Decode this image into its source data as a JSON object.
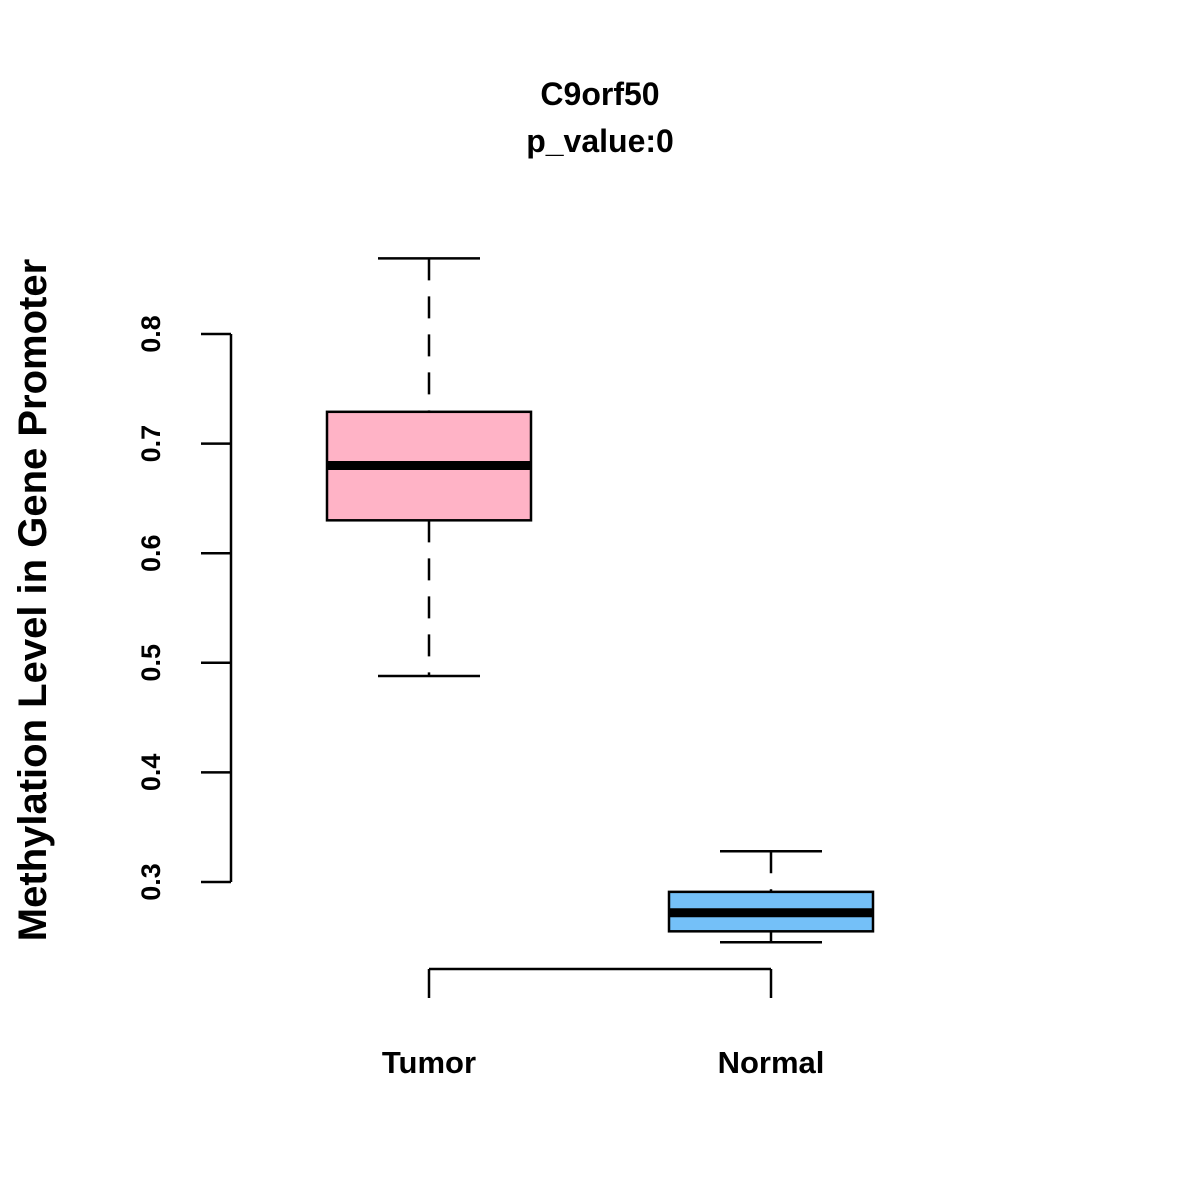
{
  "chart_data": {
    "type": "box",
    "title": "C9orf50",
    "subtitle": "p_value:0",
    "xlabel": "",
    "ylabel": "Methylation Level in Gene Promoter",
    "categories": [
      "Tumor",
      "Normal"
    ],
    "yticks": [
      "0.3",
      "0.4",
      "0.5",
      "0.6",
      "0.7",
      "0.8"
    ],
    "ytick_values": [
      0.3,
      0.4,
      0.5,
      0.6,
      0.7,
      0.8
    ],
    "series": [
      {
        "name": "Tumor",
        "color": "#FFB3C6",
        "whisker_low": 0.488,
        "q1": 0.63,
        "median": 0.68,
        "q3": 0.729,
        "whisker_high": 0.869
      },
      {
        "name": "Normal",
        "color": "#74C0F8",
        "whisker_low": 0.245,
        "q1": 0.255,
        "median": 0.272,
        "q3": 0.291,
        "whisker_high": 0.328
      }
    ],
    "grid": false
  }
}
